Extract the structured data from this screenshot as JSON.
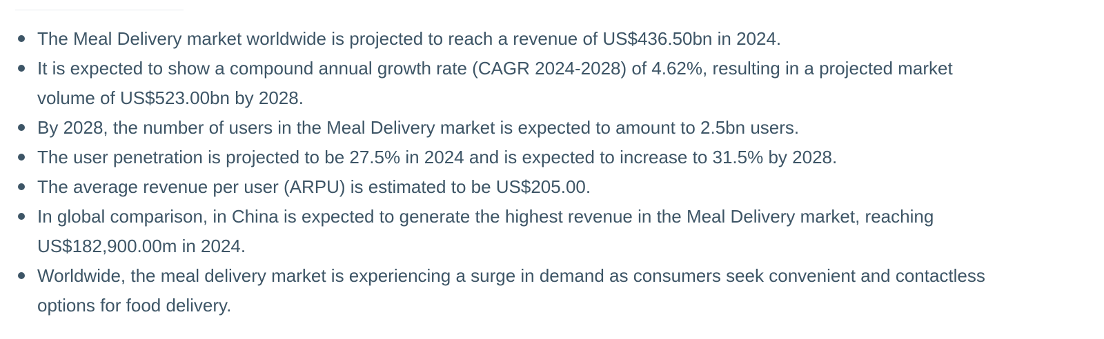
{
  "highlights": [
    {
      "lines": [
        "The Meal Delivery market worldwide is projected to reach a revenue of US$436.50bn in 2024."
      ]
    },
    {
      "lines": [
        "It is expected to show a compound annual growth rate (CAGR 2024-2028) of 4.62%, resulting in a projected market",
        "volume of US$523.00bn by 2028."
      ]
    },
    {
      "lines": [
        "By 2028, the number of users in the Meal Delivery market is expected to amount to 2.5bn users."
      ]
    },
    {
      "lines": [
        "The user penetration is projected to be 27.5% in 2024 and is expected to increase to 31.5% by 2028."
      ]
    },
    {
      "lines": [
        "The average revenue per user (ARPU) is estimated to be US$205.00."
      ]
    },
    {
      "lines": [
        "In global comparison, in China is expected to generate the highest revenue in the Meal Delivery market, reaching",
        "US$182,900.00m in 2024."
      ]
    },
    {
      "lines": [
        "Worldwide, the meal delivery market is experiencing a surge in demand as consumers seek convenient and contactless",
        "options for food delivery."
      ]
    }
  ]
}
